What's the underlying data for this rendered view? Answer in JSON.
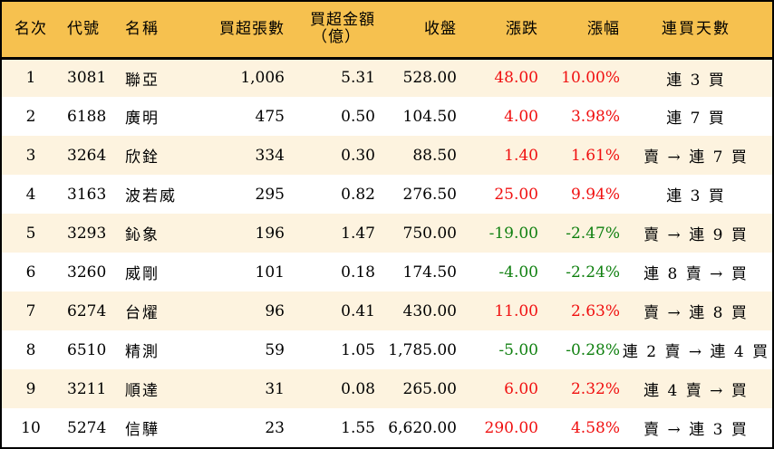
{
  "table": {
    "colors": {
      "header_bg": "#f6c14f",
      "row_odd_bg": "#fdf3df",
      "row_even_bg": "#ffffff",
      "up": "#f01010",
      "down": "#108010"
    },
    "headers": {
      "rank": "名次",
      "code": "代號",
      "name": "名稱",
      "net_buy_lots": "買超張數",
      "net_buy_amount_line1": "買超金額",
      "net_buy_amount_line2": "（億）",
      "close": "收盤",
      "change": "漲跌",
      "change_pct": "漲幅",
      "streak": "連買天數"
    },
    "rows": [
      {
        "rank": "1",
        "code": "3081",
        "name": "聯亞",
        "lots": "1,006",
        "amount": "5.31",
        "close": "528.00",
        "change": "48.00",
        "pct": "10.00%",
        "dir": "up",
        "streak": "連 3 買"
      },
      {
        "rank": "2",
        "code": "6188",
        "name": "廣明",
        "lots": "475",
        "amount": "0.50",
        "close": "104.50",
        "change": "4.00",
        "pct": "3.98%",
        "dir": "up",
        "streak": "連 7 買"
      },
      {
        "rank": "3",
        "code": "3264",
        "name": "欣銓",
        "lots": "334",
        "amount": "0.30",
        "close": "88.50",
        "change": "1.40",
        "pct": "1.61%",
        "dir": "up",
        "streak": "賣 → 連 7 買"
      },
      {
        "rank": "4",
        "code": "3163",
        "name": "波若威",
        "lots": "295",
        "amount": "0.82",
        "close": "276.50",
        "change": "25.00",
        "pct": "9.94%",
        "dir": "up",
        "streak": "連 3 買"
      },
      {
        "rank": "5",
        "code": "3293",
        "name": "鈊象",
        "lots": "196",
        "amount": "1.47",
        "close": "750.00",
        "change": "-19.00",
        "pct": "-2.47%",
        "dir": "down",
        "streak": "賣 → 連 9 買"
      },
      {
        "rank": "6",
        "code": "3260",
        "name": "威剛",
        "lots": "101",
        "amount": "0.18",
        "close": "174.50",
        "change": "-4.00",
        "pct": "-2.24%",
        "dir": "down",
        "streak": "連 8 賣 → 買"
      },
      {
        "rank": "7",
        "code": "6274",
        "name": "台燿",
        "lots": "96",
        "amount": "0.41",
        "close": "430.00",
        "change": "11.00",
        "pct": "2.63%",
        "dir": "up",
        "streak": "賣 → 連 8 買"
      },
      {
        "rank": "8",
        "code": "6510",
        "name": "精測",
        "lots": "59",
        "amount": "1.05",
        "close": "1,785.00",
        "change": "-5.00",
        "pct": "-0.28%",
        "dir": "down",
        "streak": "連 2 賣 → 連 4 買"
      },
      {
        "rank": "9",
        "code": "3211",
        "name": "順達",
        "lots": "31",
        "amount": "0.08",
        "close": "265.00",
        "change": "6.00",
        "pct": "2.32%",
        "dir": "up",
        "streak": "連 4 賣 → 買"
      },
      {
        "rank": "10",
        "code": "5274",
        "name": "信驊",
        "lots": "23",
        "amount": "1.55",
        "close": "6,620.00",
        "change": "290.00",
        "pct": "4.58%",
        "dir": "up",
        "streak": "賣 → 連 3 買"
      }
    ]
  }
}
